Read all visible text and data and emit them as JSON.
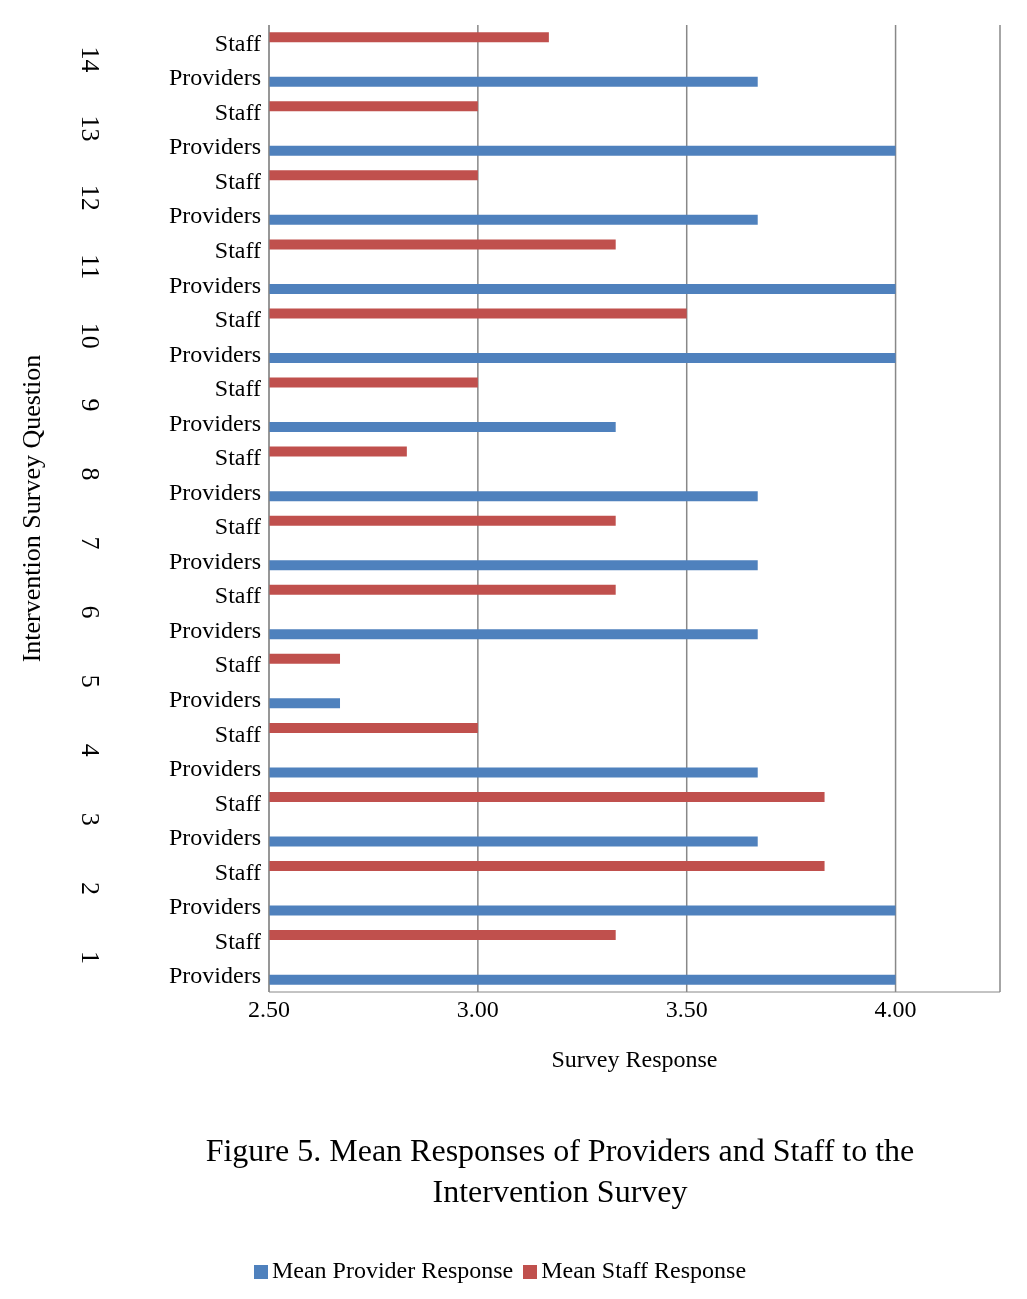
{
  "chart_data": {
    "type": "bar",
    "orientation": "horizontal",
    "title": "Figure 5. Mean Responses of Providers and Staff to the Intervention Survey",
    "xlabel": "Survey Response",
    "ylabel": "Intervention Survey Question",
    "categories": [
      "Staff",
      "Providers",
      "Staff",
      "Providers",
      "Staff",
      "Providers",
      "Staff",
      "Providers",
      "Staff",
      "Providers",
      "Staff",
      "Providers",
      "Staff",
      "Providers",
      "Staff",
      "Providers",
      "Staff",
      "Providers",
      "Staff",
      "Providers",
      "Staff",
      "Providers",
      "Staff",
      "Providers",
      "Staff",
      "Providers",
      "Staff",
      "Providers"
    ],
    "annotations": [
      "14",
      "13",
      "12",
      "11",
      "10",
      "9",
      "8",
      "7",
      "6",
      "5",
      "4",
      "3",
      "2",
      "1"
    ],
    "series": [
      {
        "name": "Mean Staff Response",
        "color": "#c0504d",
        "values": [
          3.17,
          null,
          3.0,
          null,
          3.0,
          null,
          3.33,
          null,
          3.5,
          null,
          3.0,
          null,
          2.83,
          null,
          3.33,
          null,
          3.33,
          null,
          2.67,
          null,
          3.0,
          null,
          3.83,
          null,
          3.83,
          null,
          3.33,
          null
        ]
      },
      {
        "name": "Mean Provider Response",
        "color": "#4f81bd",
        "values": [
          null,
          3.67,
          null,
          4.0,
          null,
          3.67,
          null,
          4.0,
          null,
          4.0,
          null,
          3.33,
          null,
          3.67,
          null,
          3.67,
          null,
          3.67,
          null,
          2.67,
          null,
          3.67,
          null,
          3.67,
          null,
          4.0,
          null,
          4.0
        ]
      }
    ],
    "xlim": [
      2.5,
      4.25
    ],
    "xticks": [
      {
        "value": 2.5,
        "label": "2.50"
      },
      {
        "value": 3,
        "label": "3.00"
      },
      {
        "value": 3.5,
        "label": "3.50"
      },
      {
        "value": 4,
        "label": "4.00"
      }
    ],
    "grid": "x",
    "legend": "bottom"
  }
}
